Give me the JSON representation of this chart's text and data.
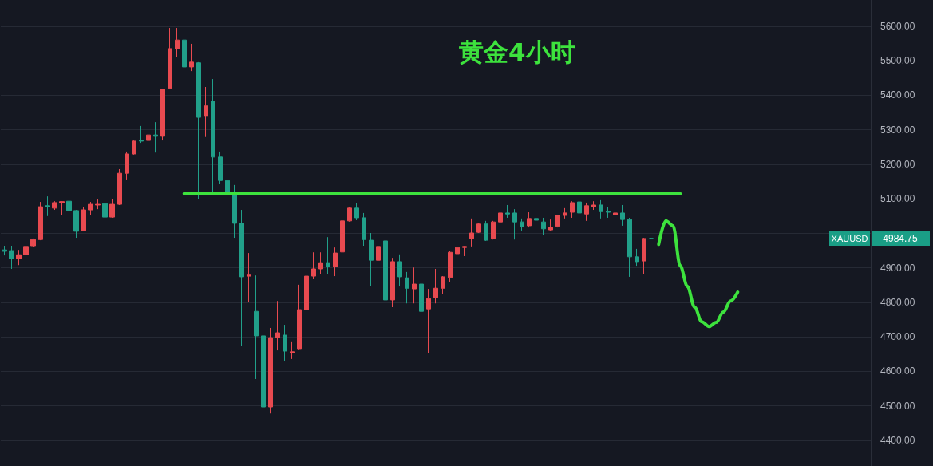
{
  "chart_data": {
    "type": "candlestick",
    "title": "黄金4小时",
    "categories": [
      null,
      null,
      null,
      null,
      null,
      null,
      null,
      null,
      null,
      null,
      null,
      null,
      null,
      null,
      null,
      null,
      null,
      null,
      null,
      null,
      null,
      null,
      null,
      null,
      null,
      null,
      null,
      null,
      null,
      null,
      null,
      null,
      null,
      null,
      null,
      null,
      null,
      null,
      null,
      null,
      null,
      null,
      null,
      null,
      null,
      null,
      null,
      null,
      null,
      null,
      null,
      null,
      null,
      null,
      null,
      null,
      null,
      null,
      null,
      null,
      null,
      null,
      null,
      null,
      null,
      null,
      null,
      null,
      null,
      null,
      null,
      null,
      null,
      null,
      null,
      null,
      null,
      null,
      null,
      null,
      null,
      null,
      null,
      null,
      null,
      null,
      null,
      null,
      null,
      null,
      null,
      null,
      null,
      null,
      null,
      null,
      null,
      null,
      null,
      null,
      null,
      null,
      null,
      null,
      null,
      null,
      null,
      null,
      null,
      null,
      null,
      null,
      null,
      null,
      null,
      null,
      null,
      null,
      null,
      null,
      null
    ],
    "ohlc": [
      [
        4952,
        4964,
        4936,
        4948
      ],
      [
        4950,
        4964,
        4897,
        4927
      ],
      [
        4927,
        4952,
        4908,
        4938
      ],
      [
        4938,
        4982,
        4936,
        4962
      ],
      [
        4964,
        4985,
        4962,
        4982
      ],
      [
        4982,
        5091,
        4980,
        5077
      ],
      [
        5080,
        5107,
        5050,
        5077
      ],
      [
        5073,
        5093,
        5068,
        5089
      ],
      [
        5089,
        5093,
        5054,
        5092
      ],
      [
        5093,
        5103,
        5054,
        5066
      ],
      [
        5066,
        5068,
        4987,
        5006
      ],
      [
        5008,
        5075,
        5006,
        5068
      ],
      [
        5068,
        5091,
        5054,
        5084
      ],
      [
        5082,
        5098,
        5070,
        5084
      ],
      [
        5086,
        5091,
        5043,
        5047
      ],
      [
        5047,
        5100,
        5045,
        5084
      ],
      [
        5084,
        5186,
        5082,
        5174
      ],
      [
        5174,
        5237,
        5156,
        5230
      ],
      [
        5230,
        5269,
        5228,
        5267
      ],
      [
        5269,
        5311,
        5262,
        5267
      ],
      [
        5269,
        5288,
        5237,
        5285
      ],
      [
        5285,
        5322,
        5234,
        5281
      ],
      [
        5281,
        5419,
        5269,
        5417
      ],
      [
        5420,
        5595,
        5418,
        5535
      ],
      [
        5535,
        5595,
        5510,
        5560
      ],
      [
        5560,
        5572,
        5475,
        5482
      ],
      [
        5482,
        5549,
        5470,
        5496
      ],
      [
        5494,
        5496,
        5100,
        5336
      ],
      [
        5339,
        5424,
        5279,
        5369
      ],
      [
        5383,
        5447,
        5119,
        5221
      ],
      [
        5221,
        5237,
        5142,
        5153
      ],
      [
        5153,
        5181,
        4938,
        5119
      ],
      [
        5119,
        5140,
        4987,
        5029
      ],
      [
        5029,
        5068,
        4675,
        4874
      ],
      [
        4876,
        4943,
        4800,
        4879
      ],
      [
        4774,
        4878,
        4578,
        4703
      ],
      [
        4703,
        4721,
        4395,
        4497
      ],
      [
        4497,
        4726,
        4478,
        4698
      ],
      [
        4698,
        4804,
        4661,
        4712
      ],
      [
        4705,
        4735,
        4631,
        4659
      ],
      [
        4654,
        4687,
        4636,
        4657
      ],
      [
        4666,
        4851,
        4664,
        4779
      ],
      [
        4779,
        4890,
        4747,
        4876
      ],
      [
        4876,
        4945,
        4867,
        4897
      ],
      [
        4897,
        4945,
        4883,
        4915
      ],
      [
        4915,
        4989,
        4883,
        4904
      ],
      [
        4904,
        4959,
        4876,
        4943
      ],
      [
        4946,
        5061,
        4904,
        5036
      ],
      [
        5036,
        5077,
        5034,
        5073
      ],
      [
        5073,
        5087,
        5038,
        5045
      ],
      [
        5045,
        5059,
        4964,
        4982
      ],
      [
        4980,
        5001,
        4848,
        4922
      ],
      [
        4922,
        4966,
        4911,
        4962
      ],
      [
        4978,
        5019,
        4805,
        4807
      ],
      [
        4807,
        4929,
        4786,
        4918
      ],
      [
        4918,
        4939,
        4846,
        4874
      ],
      [
        4871,
        4888,
        4797,
        4841
      ],
      [
        4839,
        4901,
        4797,
        4853
      ],
      [
        4853,
        4860,
        4756,
        4774
      ],
      [
        4781,
        4839,
        4652,
        4811
      ],
      [
        4814,
        4897,
        4797,
        4841
      ],
      [
        4841,
        4876,
        4825,
        4874
      ],
      [
        4872,
        4948,
        4860,
        4945
      ],
      [
        4941,
        4966,
        4918,
        4959
      ],
      [
        4959,
        4963,
        4934,
        4962
      ],
      [
        4985,
        5043,
        4962,
        5001
      ],
      [
        5003,
        5029,
        5001,
        5027
      ],
      [
        5027,
        5036,
        4978,
        4980
      ],
      [
        4985,
        5036,
        4982,
        5033
      ],
      [
        5033,
        5077,
        5022,
        5059
      ],
      [
        5059,
        5082,
        5045,
        5056
      ],
      [
        5059,
        5070,
        4982,
        5033
      ],
      [
        5033,
        5043,
        5008,
        5019
      ],
      [
        5022,
        5061,
        5017,
        5043
      ],
      [
        5043,
        5073,
        5010,
        5038
      ],
      [
        5033,
        5045,
        4996,
        5013
      ],
      [
        5010,
        5040,
        5008,
        5017
      ],
      [
        5020,
        5054,
        5017,
        5052
      ],
      [
        5052,
        5073,
        5043,
        5059
      ],
      [
        5061,
        5093,
        5045,
        5089
      ],
      [
        5091,
        5114,
        5017,
        5059
      ],
      [
        5056,
        5089,
        5036,
        5080
      ],
      [
        5077,
        5093,
        5068,
        5082
      ],
      [
        5082,
        5096,
        5043,
        5063
      ],
      [
        5063,
        5077,
        5045,
        5061
      ],
      [
        5054,
        5077,
        5050,
        5059
      ],
      [
        5059,
        5082,
        5022,
        5040
      ],
      [
        5040,
        5045,
        4874,
        4932
      ],
      [
        4932,
        4955,
        4906,
        4918
      ],
      [
        4920,
        4987,
        4883,
        4985
      ],
      [
        4985,
        4986,
        4983,
        4985
      ],
      null,
      null,
      null,
      null,
      null,
      null,
      null,
      null,
      null,
      null,
      null,
      null,
      null,
      null,
      null,
      null,
      null,
      null,
      null,
      null,
      null,
      null,
      null,
      null,
      null,
      null,
      null,
      null,
      null,
      null
    ],
    "colors": [
      "#21a08a",
      "#21a08a",
      "#e84a50",
      "#e84a50",
      "#e84a50",
      "#e84a50",
      "#21a08a",
      "#e84a50",
      "#e84a50",
      "#21a08a",
      "#21a08a",
      "#e84a50",
      "#e84a50",
      "#e84a50",
      "#21a08a",
      "#e84a50",
      "#e84a50",
      "#e84a50",
      "#e84a50",
      "#21a08a",
      "#e84a50",
      "#21a08a",
      "#e84a50",
      "#e84a50",
      "#e84a50",
      "#21a08a",
      "#e84a50",
      "#21a08a",
      "#e84a50",
      "#21a08a",
      "#21a08a",
      "#21a08a",
      "#21a08a",
      "#21a08a",
      "#e84a50",
      "#21a08a",
      "#21a08a",
      "#e84a50",
      "#e84a50",
      "#21a08a",
      "#e84a50",
      "#e84a50",
      "#e84a50",
      "#e84a50",
      "#e84a50",
      "#21a08a",
      "#e84a50",
      "#e84a50",
      "#e84a50",
      "#21a08a",
      "#21a08a",
      "#21a08a",
      "#e84a50",
      "#21a08a",
      "#e84a50",
      "#21a08a",
      "#21a08a",
      "#e84a50",
      "#21a08a",
      "#e84a50",
      "#e84a50",
      "#e84a50",
      "#e84a50",
      "#e84a50",
      "#e84a50",
      "#e84a50",
      "#e84a50",
      "#21a08a",
      "#e84a50",
      "#e84a50",
      "#21a08a",
      "#21a08a",
      "#21a08a",
      "#e84a50",
      "#21a08a",
      "#21a08a",
      "#e84a50",
      "#e84a50",
      "#e84a50",
      "#e84a50",
      "#21a08a",
      "#e84a50",
      "#e84a50",
      "#21a08a",
      "#21a08a",
      "#e84a50",
      "#21a08a",
      "#21a08a",
      "#21a08a",
      "#e84a50",
      "#21a08a",
      null,
      null,
      null,
      null,
      null,
      null,
      null,
      null,
      null,
      null,
      null,
      null,
      null,
      null,
      null,
      null,
      null,
      null,
      null,
      null,
      null,
      null,
      null,
      null,
      null,
      null,
      null,
      null,
      null,
      null
    ],
    "series": [
      {
        "type": "line",
        "color": "#3de23d",
        "values": [
          null,
          null,
          null,
          null,
          null,
          null,
          null,
          null,
          null,
          null,
          null,
          null,
          null,
          null,
          null,
          null,
          null,
          null,
          null,
          null,
          null,
          null,
          null,
          null,
          null,
          5115,
          5115,
          5115,
          5115,
          5115,
          5115,
          5115,
          5115,
          5115,
          5115,
          5115,
          5115,
          5115,
          5115,
          5115,
          5115,
          5115,
          5115,
          5115,
          5115,
          5115,
          5115,
          5115,
          5115,
          5115,
          5115,
          5115,
          5115,
          5115,
          5115,
          5115,
          5115,
          5115,
          5115,
          5115,
          5115,
          5115,
          5115,
          5115,
          5115,
          5115,
          5115,
          5115,
          5115,
          5115,
          5115,
          5115,
          5115,
          5115,
          5115,
          5115,
          5115,
          5115,
          5115,
          5115,
          5115,
          5115,
          5115,
          5115,
          5115,
          5115,
          5115,
          5115,
          5115,
          5115,
          5115,
          5115,
          5115,
          5115,
          5115,
          null,
          null,
          null,
          null,
          null,
          null,
          null,
          null,
          null,
          null,
          null,
          null,
          null,
          null,
          null,
          null,
          null,
          null,
          null,
          null,
          null,
          null,
          null,
          null,
          null,
          null
        ]
      },
      {
        "type": "line",
        "color": "#3de23d",
        "values": [
          null,
          null,
          null,
          null,
          null,
          null,
          null,
          null,
          null,
          null,
          null,
          null,
          null,
          null,
          null,
          null,
          null,
          null,
          null,
          null,
          null,
          null,
          null,
          null,
          null,
          null,
          null,
          null,
          null,
          null,
          null,
          null,
          null,
          null,
          null,
          null,
          null,
          null,
          null,
          null,
          null,
          null,
          null,
          null,
          null,
          null,
          null,
          null,
          null,
          null,
          null,
          null,
          null,
          null,
          null,
          null,
          null,
          null,
          null,
          null,
          null,
          null,
          null,
          null,
          null,
          null,
          null,
          null,
          null,
          null,
          null,
          null,
          null,
          null,
          null,
          null,
          null,
          null,
          null,
          null,
          null,
          null,
          null,
          null,
          null,
          null,
          null,
          null,
          null,
          null,
          null,
          4968,
          5036,
          5022,
          4906,
          4846,
          4786,
          4744,
          4730,
          4742,
          4772,
          4804,
          4830,
          null,
          null,
          null,
          null,
          null,
          null,
          null,
          null,
          null,
          null,
          null,
          null,
          null,
          null,
          null,
          null,
          null,
          null
        ]
      }
    ],
    "ylim": [
      4326,
      5676
    ],
    "yticks": [
      {
        "value": 4400,
        "label": "4400.00"
      },
      {
        "value": 4500,
        "label": "4500.00"
      },
      {
        "value": 4600,
        "label": "4600.00"
      },
      {
        "value": 4700,
        "label": "4700.00"
      },
      {
        "value": 4800,
        "label": "4800.00"
      },
      {
        "value": 4900,
        "label": "4900.00"
      },
      {
        "value": 5000,
        "label": null
      },
      {
        "value": 5100,
        "label": "5100.00"
      },
      {
        "value": 5200,
        "label": "5200.00"
      },
      {
        "value": 5300,
        "label": "5300.00"
      },
      {
        "value": 5400,
        "label": "5400.00"
      },
      {
        "value": 5500,
        "label": "5500.00"
      },
      {
        "value": 5600,
        "label": "5600.00"
      }
    ],
    "tick_labels": "y",
    "grid": "y",
    "ref_lines": [
      {
        "axis": "y",
        "value": 4984.75,
        "label": "XAUUSD",
        "color": "#1a9e86",
        "line_style": "dotted"
      }
    ],
    "annotations": [
      "4984.75"
    ]
  }
}
